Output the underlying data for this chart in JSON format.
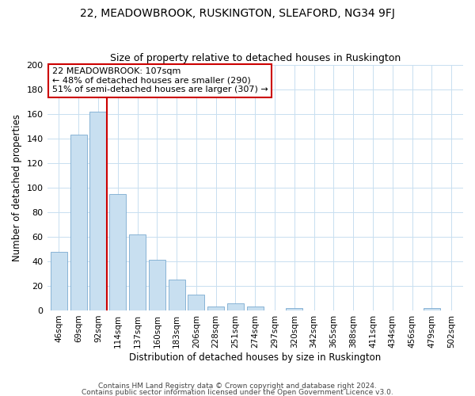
{
  "title": "22, MEADOWBROOK, RUSKINGTON, SLEAFORD, NG34 9FJ",
  "subtitle": "Size of property relative to detached houses in Ruskington",
  "xlabel": "Distribution of detached houses by size in Ruskington",
  "ylabel": "Number of detached properties",
  "bar_color": "#c8dff0",
  "bar_edge_color": "#7aaad0",
  "grid_color": "#c8dff0",
  "vline_x": 3,
  "vline_color": "#cc0000",
  "annotation_text": "22 MEADOWBROOK: 107sqm\n← 48% of detached houses are smaller (290)\n51% of semi-detached houses are larger (307) →",
  "annotation_box_color": "white",
  "annotation_box_edge": "#cc0000",
  "categories": [
    "46sqm",
    "69sqm",
    "92sqm",
    "114sqm",
    "137sqm",
    "160sqm",
    "183sqm",
    "206sqm",
    "228sqm",
    "251sqm",
    "274sqm",
    "297sqm",
    "320sqm",
    "342sqm",
    "365sqm",
    "388sqm",
    "411sqm",
    "434sqm",
    "456sqm",
    "479sqm",
    "502sqm"
  ],
  "values": [
    48,
    143,
    162,
    95,
    62,
    41,
    25,
    13,
    3,
    6,
    3,
    0,
    2,
    0,
    0,
    0,
    0,
    0,
    0,
    2,
    0
  ],
  "ylim": [
    0,
    200
  ],
  "yticks": [
    0,
    20,
    40,
    60,
    80,
    100,
    120,
    140,
    160,
    180,
    200
  ],
  "footer1": "Contains HM Land Registry data © Crown copyright and database right 2024.",
  "footer2": "Contains public sector information licensed under the Open Government Licence v3.0."
}
